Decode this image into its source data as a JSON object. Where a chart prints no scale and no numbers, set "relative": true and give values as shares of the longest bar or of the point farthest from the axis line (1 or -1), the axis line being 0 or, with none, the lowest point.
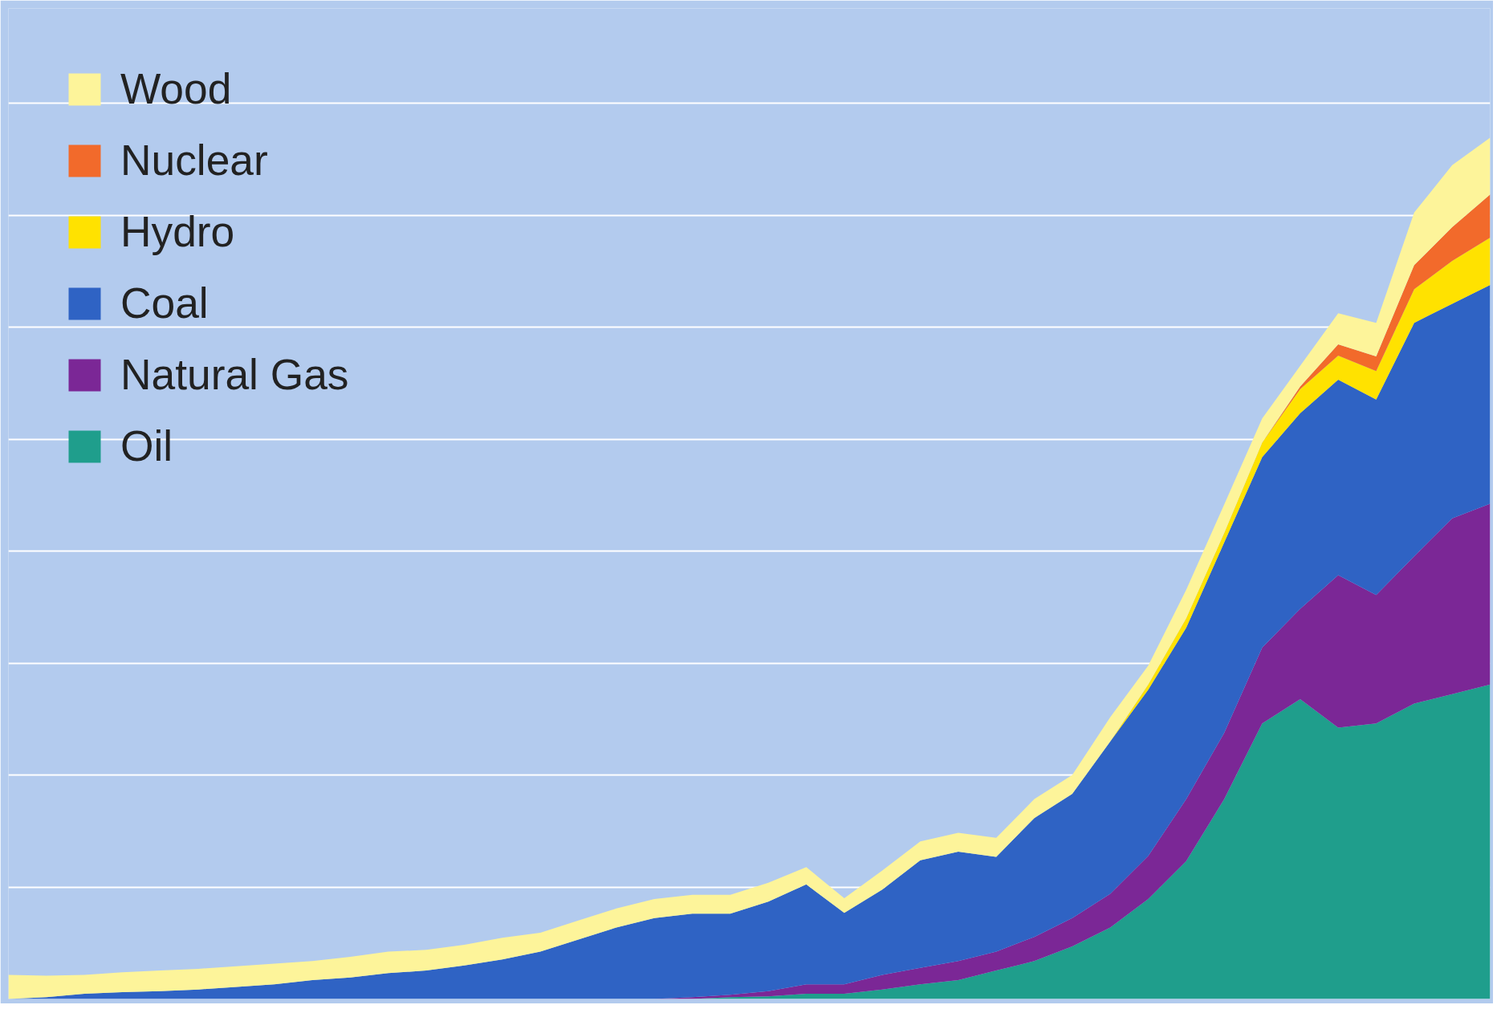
{
  "chart_data": {
    "type": "area",
    "stacked": true,
    "relative": true,
    "grid": "y",
    "legend": "top left",
    "tick_labels": false,
    "categories": [
      null,
      null,
      null,
      null,
      null,
      null,
      null,
      null,
      null,
      null,
      null,
      null,
      null,
      null,
      null,
      null,
      null,
      null,
      null,
      null,
      null,
      null,
      null,
      null,
      null,
      null,
      null,
      null,
      null,
      null,
      null,
      null,
      null,
      null,
      null,
      null,
      null,
      null,
      null,
      null
    ],
    "series": [
      {
        "name": "Oil",
        "color": "#1f9e8c",
        "values": [
          0,
          0,
          0,
          0,
          0,
          0,
          0,
          0,
          0,
          0,
          0,
          0,
          0,
          0,
          0,
          0,
          0,
          0,
          0,
          0.002,
          0.003,
          0.006,
          0.006,
          0.011,
          0.017,
          0.022,
          0.033,
          0.044,
          0.061,
          0.083,
          0.116,
          0.16,
          0.232,
          0.32,
          0.348,
          0.315,
          0.32,
          0.343,
          0.354,
          0.365
        ]
      },
      {
        "name": "Natural Gas",
        "color": "#7b2796",
        "values": [
          0,
          0,
          0,
          0,
          0,
          0,
          0,
          0,
          0,
          0,
          0,
          0,
          0,
          0,
          0,
          0,
          0,
          0,
          0.002,
          0.003,
          0.006,
          0.011,
          0.011,
          0.017,
          0.019,
          0.022,
          0.022,
          0.028,
          0.033,
          0.039,
          0.05,
          0.072,
          0.077,
          0.088,
          0.105,
          0.177,
          0.149,
          0.171,
          0.204,
          0.21
        ]
      },
      {
        "name": "Coal",
        "color": "#2f63c4",
        "values": [
          0,
          0.002,
          0.006,
          0.008,
          0.009,
          0.011,
          0.014,
          0.017,
          0.022,
          0.025,
          0.03,
          0.033,
          0.039,
          0.046,
          0.055,
          0.069,
          0.083,
          0.094,
          0.097,
          0.094,
          0.104,
          0.116,
          0.083,
          0.099,
          0.125,
          0.127,
          0.11,
          0.138,
          0.144,
          0.177,
          0.193,
          0.199,
          0.221,
          0.221,
          0.227,
          0.227,
          0.227,
          0.271,
          0.249,
          0.254
        ]
      },
      {
        "name": "Hydro",
        "color": "#ffe200",
        "values": [
          0,
          0,
          0,
          0,
          0,
          0,
          0,
          0,
          0,
          0,
          0,
          0,
          0,
          0,
          0,
          0,
          0,
          0,
          0,
          0,
          0,
          0,
          0,
          0,
          0,
          0,
          0,
          0,
          0,
          0,
          0.006,
          0.011,
          0.011,
          0.017,
          0.028,
          0.028,
          0.033,
          0.039,
          0.05,
          0.055
        ]
      },
      {
        "name": "Nuclear",
        "color": "#f26a2b",
        "values": [
          0,
          0,
          0,
          0,
          0,
          0,
          0,
          0,
          0,
          0,
          0,
          0,
          0,
          0,
          0,
          0,
          0,
          0,
          0,
          0,
          0,
          0,
          0,
          0,
          0,
          0,
          0,
          0,
          0,
          0,
          0,
          0,
          0,
          0,
          0.003,
          0.013,
          0.017,
          0.028,
          0.039,
          0.05
        ]
      },
      {
        "name": "Wood",
        "color": "#fdf49a",
        "values": [
          0.028,
          0.025,
          0.022,
          0.023,
          0.024,
          0.024,
          0.024,
          0.024,
          0.022,
          0.024,
          0.025,
          0.024,
          0.024,
          0.025,
          0.022,
          0.022,
          0.022,
          0.022,
          0.022,
          0.022,
          0.022,
          0.02,
          0.017,
          0.022,
          0.022,
          0.022,
          0.022,
          0.022,
          0.022,
          0.028,
          0.022,
          0.033,
          0.033,
          0.028,
          0.024,
          0.036,
          0.039,
          0.061,
          0.072,
          0.066
        ]
      }
    ]
  }
}
